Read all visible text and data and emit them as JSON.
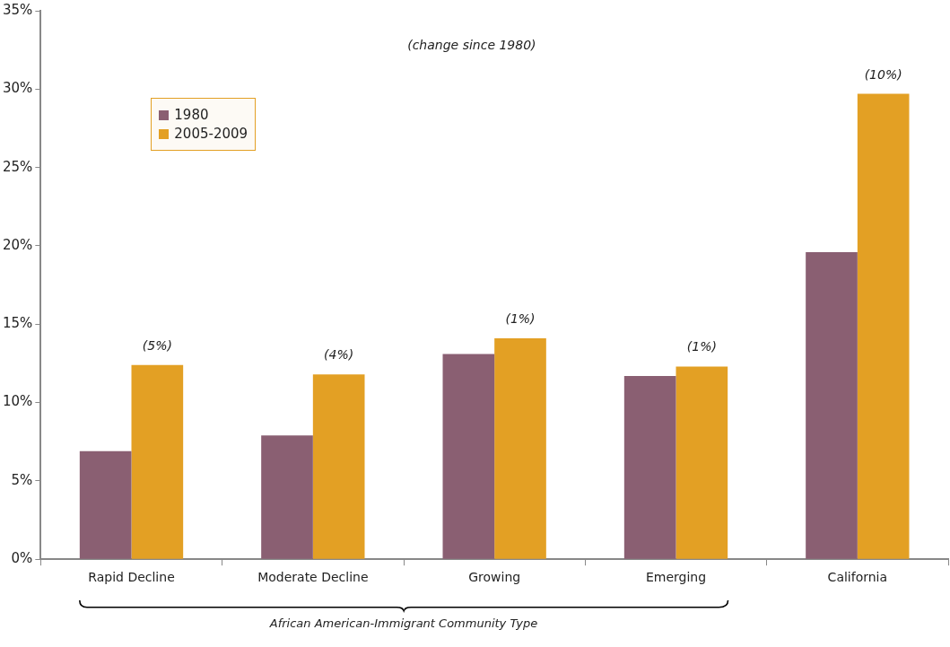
{
  "chart_data": {
    "type": "bar",
    "xlabel": "African American-Immigrant Community Type",
    "categories": [
      "Rapid Decline",
      "Moderate Decline",
      "Growing",
      "Emerging",
      "California"
    ],
    "series": [
      {
        "name": "1980",
        "color": "#8a5f72",
        "values": [
          6.9,
          7.9,
          13.1,
          11.7,
          19.6
        ]
      },
      {
        "name": "2005-2009",
        "color": "#e3a024",
        "values": [
          12.4,
          11.8,
          14.1,
          12.3,
          29.7
        ]
      }
    ],
    "ylim": [
      0,
      35
    ],
    "yticks": [
      {
        "value": 0,
        "label": "0%"
      },
      {
        "value": 5,
        "label": "5%"
      },
      {
        "value": 10,
        "label": "10%"
      },
      {
        "value": 15,
        "label": "15%"
      },
      {
        "value": 20,
        "label": "20%"
      },
      {
        "value": 25,
        "label": "25%"
      },
      {
        "value": 30,
        "label": "30%"
      },
      {
        "value": 35,
        "label": "35%"
      }
    ],
    "grid": false,
    "legend": "top left",
    "annotations": [
      "(change since 1980)",
      {
        "text": "(5%)",
        "x": "Rapid Decline",
        "y": 12.4
      },
      {
        "text": "(4%)",
        "x": "Moderate Decline",
        "y": 11.8
      },
      {
        "text": "(1%)",
        "x": "Growing",
        "y": 14.1
      },
      {
        "text": "(1%)",
        "x": "Emerging",
        "y": 12.3
      },
      {
        "text": "(10%)",
        "x": "California",
        "y": 29.7
      }
    ]
  }
}
